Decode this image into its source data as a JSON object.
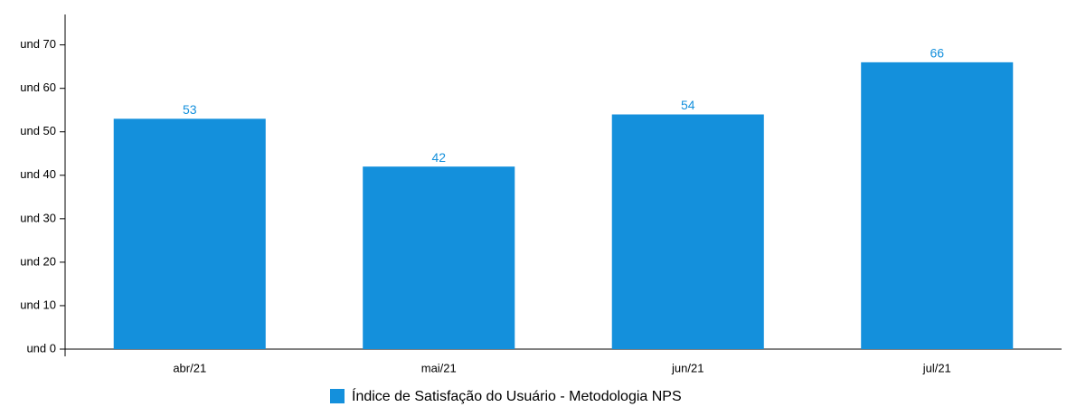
{
  "chart_data": {
    "type": "bar",
    "categories": [
      "abr/21",
      "mai/21",
      "jun/21",
      "jul/21"
    ],
    "series": [
      {
        "name": "Índice de Satisfação do Usuário - Metodologia NPS",
        "color": "#1490dc",
        "values": [
          53,
          42,
          54,
          66
        ]
      }
    ],
    "ylim": [
      0,
      77
    ],
    "yticks": [
      {
        "value": 0,
        "label": "und 0"
      },
      {
        "value": 10,
        "label": "und 10"
      },
      {
        "value": 20,
        "label": "und 20"
      },
      {
        "value": 30,
        "label": "und 30"
      },
      {
        "value": 40,
        "label": "und 40"
      },
      {
        "value": 50,
        "label": "und 50"
      },
      {
        "value": 60,
        "label": "und 60"
      },
      {
        "value": 70,
        "label": "und 70"
      }
    ],
    "legend": "bottom"
  }
}
